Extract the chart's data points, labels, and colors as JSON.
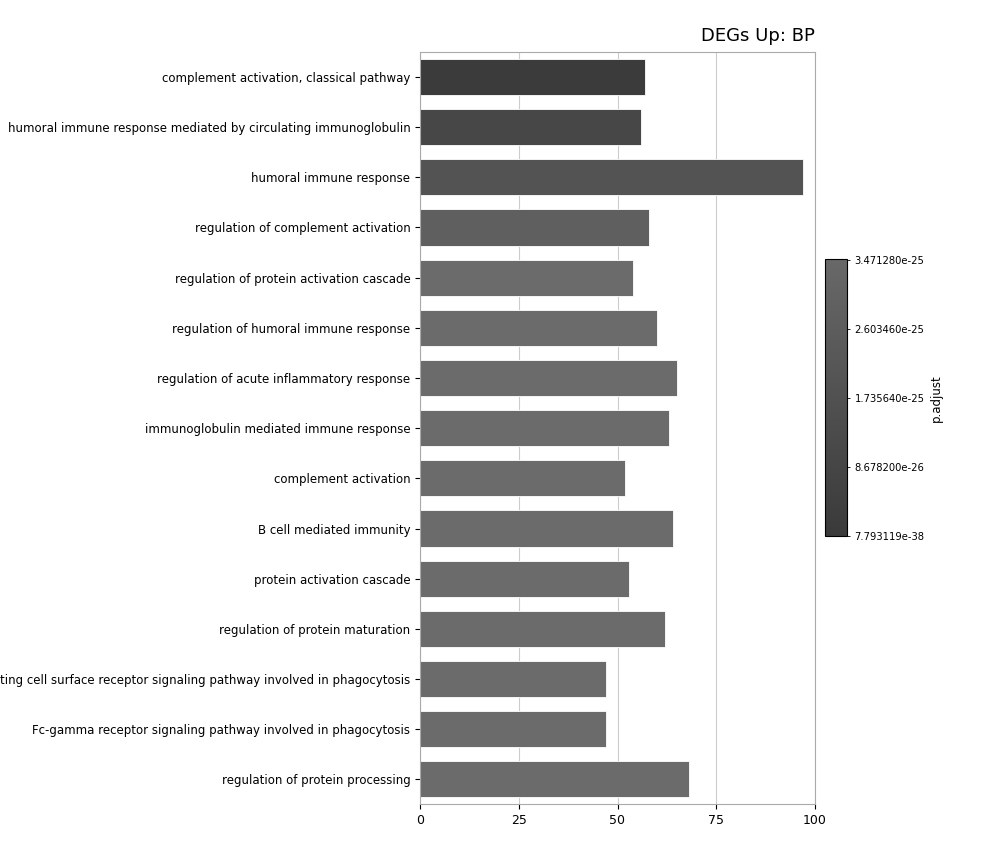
{
  "title": "DEGs Up: BP",
  "categories": [
    "complement activation, classical pathway",
    "humoral immune response mediated by circulating immunoglobulin",
    "humoral immune response",
    "regulation of complement activation",
    "regulation of protein activation cascade",
    "regulation of humoral immune response",
    "regulation of acute inflammatory response",
    "immunoglobulin mediated immune response",
    "complement activation",
    "B cell mediated immunity",
    "protein activation cascade",
    "regulation of protein maturation",
    "immune response-regulating cell surface receptor signaling pathway involved in phagocytosis",
    "Fc-gamma receptor signaling pathway involved in phagocytosis",
    "regulation of protein processing"
  ],
  "values": [
    57,
    56,
    97,
    58,
    54,
    60,
    65,
    63,
    52,
    64,
    53,
    62,
    47,
    47,
    68
  ],
  "p_adjust_values": [
    7.793119e-38,
    8.6782e-26,
    1.73564e-25,
    2.60346e-25,
    3.47128e-25,
    3.47128e-25,
    3.47128e-25,
    3.47128e-25,
    3.47128e-25,
    3.47128e-25,
    3.47128e-25,
    3.47128e-25,
    3.47128e-25,
    3.47128e-25,
    3.47128e-25
  ],
  "colorbar_label": "p.adjust",
  "colorbar_ticks": [
    "7.793119e-38",
    "8.678200e-26",
    "1.735640e-25",
    "2.603460e-25",
    "3.471280e-25"
  ],
  "colorbar_tick_vals": [
    7.793119e-38,
    8.6782e-26,
    1.73564e-25,
    2.60346e-25,
    3.47128e-25
  ],
  "xlim": [
    0,
    100
  ],
  "xticks": [
    0,
    25,
    50,
    75,
    100
  ],
  "background_color": "#ffffff",
  "grid_color": "#cccccc",
  "title_fontsize": 13,
  "label_fontsize": 8.5,
  "tick_fontsize": 9
}
